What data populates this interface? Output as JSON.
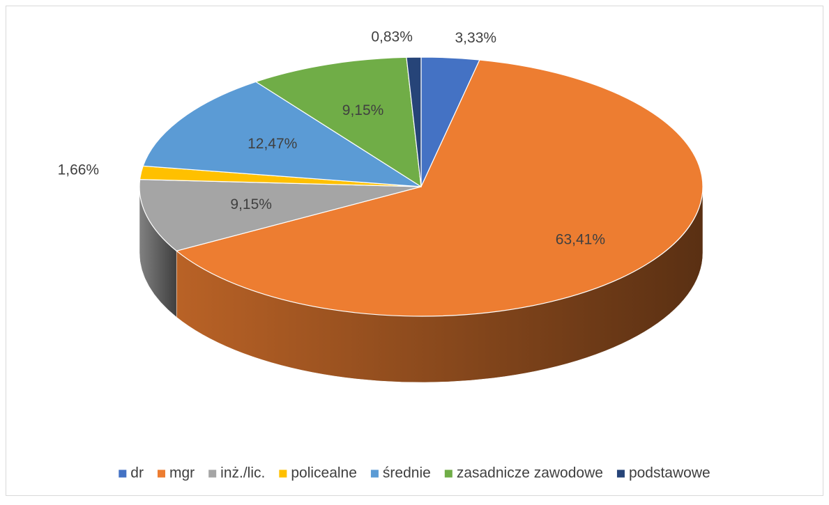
{
  "chart_data": {
    "type": "pie",
    "categories": [
      "dr",
      "mgr",
      "inż./lic.",
      "policealne",
      "średnie",
      "zasadnicze zawodowe",
      "podstawowe"
    ],
    "values": [
      3.33,
      63.41,
      9.15,
      1.66,
      12.47,
      9.15,
      0.83
    ],
    "value_labels": [
      "3,33%",
      "63,41%",
      "9,15%",
      "1,66%",
      "12,47%",
      "9,15%",
      "0,83%"
    ],
    "colors": [
      "#4472c4",
      "#ed7d31",
      "#a5a5a5",
      "#ffc000",
      "#5b9bd5",
      "#70ad47",
      "#264478"
    ],
    "legend": "bottom"
  }
}
